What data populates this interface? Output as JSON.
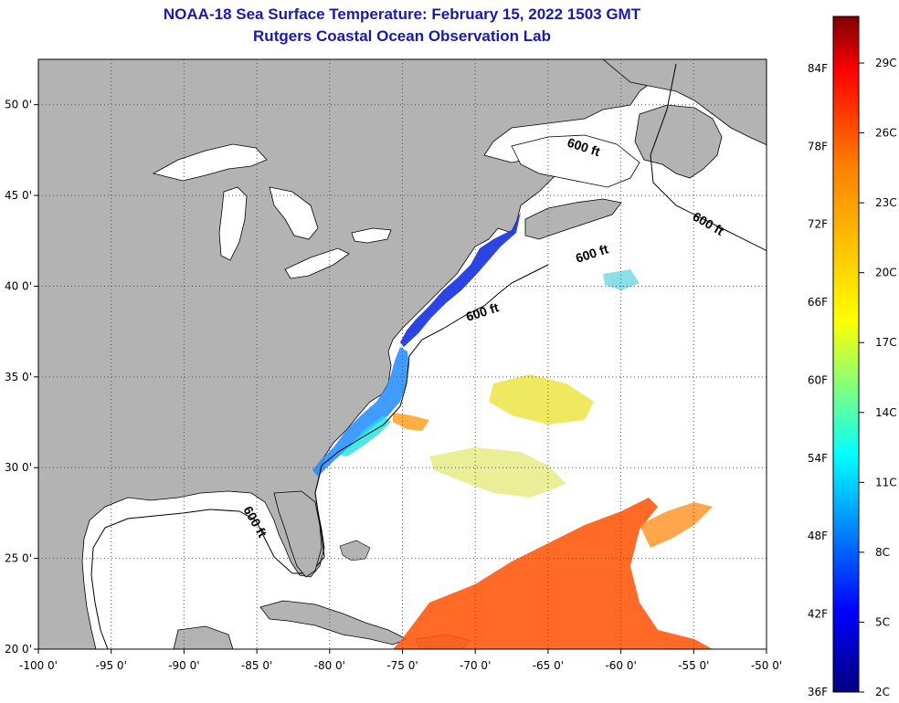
{
  "header": {
    "title": "NOAA-18 Sea Surface Temperature:  February 15, 2022 1503 GMT",
    "subtitle": "Rutgers Coastal Ocean Observation Lab"
  },
  "map": {
    "lon_range": [
      -100,
      -50
    ],
    "lat_range": [
      20,
      52.5
    ],
    "x_ticks": [
      "-100 0'",
      "-95 0'",
      "-90 0'",
      "-85 0'",
      "-80 0'",
      "-75 0'",
      "-70 0'",
      "-65 0'",
      "-60 0'",
      "-55 0'",
      "-50 0'"
    ],
    "y_ticks": [
      "20 0'",
      "25 0'",
      "30 0'",
      "35 0'",
      "40 0'",
      "45 0'",
      "50 0'"
    ],
    "contour_label": "600 ft",
    "contour_labels": [
      "600 ft",
      "600 ft",
      "600 ft",
      "600 ft",
      "600 ft"
    ],
    "land_color": "#b3b3b3",
    "ocean_color": "#ffffff"
  },
  "colorbar": {
    "range_f": [
      36,
      88
    ],
    "range_c": [
      2,
      31
    ],
    "f_labels": [
      "36F",
      "42F",
      "48F",
      "54F",
      "60F",
      "66F",
      "72F",
      "78F",
      "84F"
    ],
    "c_labels": [
      "2C",
      "5C",
      "8C",
      "11C",
      "14C",
      "17C",
      "20C",
      "23C",
      "26C",
      "29C"
    ]
  }
}
